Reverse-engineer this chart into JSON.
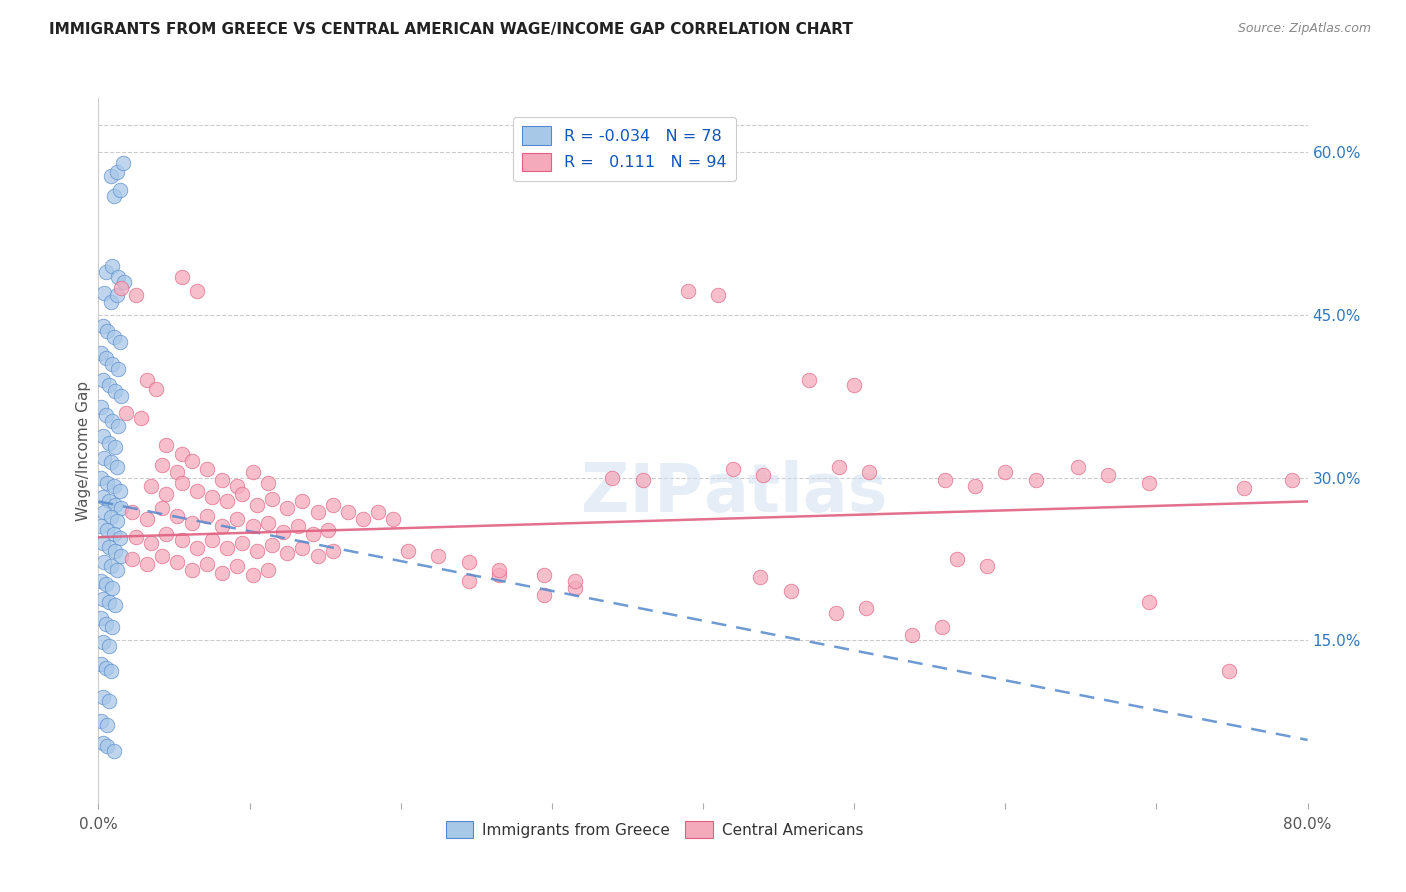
{
  "title": "IMMIGRANTS FROM GREECE VS CENTRAL AMERICAN WAGE/INCOME GAP CORRELATION CHART",
  "source": "Source: ZipAtlas.com",
  "ylabel": "Wage/Income Gap",
  "xlim": [
    0.0,
    0.8
  ],
  "ylim": [
    0.0,
    0.65
  ],
  "y_tick_labels_right": [
    "60.0%",
    "45.0%",
    "30.0%",
    "15.0%"
  ],
  "y_ticks_right": [
    0.6,
    0.45,
    0.3,
    0.15
  ],
  "color_greece": "#a8c8e8",
  "color_central": "#f5aabb",
  "trendline_greece_color": "#5588cc",
  "trendline_central_color": "#e06080",
  "watermark": "ZIPatlas",
  "greece_R": -0.034,
  "central_R": 0.111,
  "greece_trendline": [
    0.0,
    0.278,
    0.8,
    0.058
  ],
  "central_trendline": [
    0.0,
    0.245,
    0.8,
    0.278
  ],
  "greece_points": [
    [
      0.008,
      0.578
    ],
    [
      0.012,
      0.582
    ],
    [
      0.016,
      0.59
    ],
    [
      0.01,
      0.56
    ],
    [
      0.014,
      0.565
    ],
    [
      0.005,
      0.49
    ],
    [
      0.009,
      0.495
    ],
    [
      0.013,
      0.485
    ],
    [
      0.017,
      0.48
    ],
    [
      0.004,
      0.47
    ],
    [
      0.008,
      0.462
    ],
    [
      0.012,
      0.468
    ],
    [
      0.003,
      0.44
    ],
    [
      0.006,
      0.435
    ],
    [
      0.01,
      0.43
    ],
    [
      0.014,
      0.425
    ],
    [
      0.002,
      0.415
    ],
    [
      0.005,
      0.41
    ],
    [
      0.009,
      0.405
    ],
    [
      0.013,
      0.4
    ],
    [
      0.003,
      0.39
    ],
    [
      0.007,
      0.385
    ],
    [
      0.011,
      0.38
    ],
    [
      0.015,
      0.375
    ],
    [
      0.002,
      0.365
    ],
    [
      0.005,
      0.358
    ],
    [
      0.009,
      0.352
    ],
    [
      0.013,
      0.348
    ],
    [
      0.003,
      0.338
    ],
    [
      0.007,
      0.332
    ],
    [
      0.011,
      0.328
    ],
    [
      0.004,
      0.318
    ],
    [
      0.008,
      0.314
    ],
    [
      0.012,
      0.31
    ],
    [
      0.002,
      0.3
    ],
    [
      0.006,
      0.295
    ],
    [
      0.01,
      0.292
    ],
    [
      0.014,
      0.288
    ],
    [
      0.003,
      0.282
    ],
    [
      0.007,
      0.278
    ],
    [
      0.011,
      0.275
    ],
    [
      0.015,
      0.272
    ],
    [
      0.004,
      0.268
    ],
    [
      0.008,
      0.264
    ],
    [
      0.012,
      0.26
    ],
    [
      0.002,
      0.255
    ],
    [
      0.006,
      0.252
    ],
    [
      0.01,
      0.248
    ],
    [
      0.014,
      0.244
    ],
    [
      0.003,
      0.24
    ],
    [
      0.007,
      0.236
    ],
    [
      0.011,
      0.232
    ],
    [
      0.015,
      0.228
    ],
    [
      0.004,
      0.222
    ],
    [
      0.008,
      0.218
    ],
    [
      0.012,
      0.215
    ],
    [
      0.002,
      0.205
    ],
    [
      0.005,
      0.202
    ],
    [
      0.009,
      0.198
    ],
    [
      0.003,
      0.188
    ],
    [
      0.007,
      0.185
    ],
    [
      0.011,
      0.182
    ],
    [
      0.002,
      0.17
    ],
    [
      0.005,
      0.165
    ],
    [
      0.009,
      0.162
    ],
    [
      0.003,
      0.148
    ],
    [
      0.007,
      0.145
    ],
    [
      0.002,
      0.128
    ],
    [
      0.005,
      0.124
    ],
    [
      0.008,
      0.122
    ],
    [
      0.003,
      0.098
    ],
    [
      0.007,
      0.094
    ],
    [
      0.002,
      0.075
    ],
    [
      0.006,
      0.072
    ],
    [
      0.003,
      0.055
    ],
    [
      0.006,
      0.052
    ],
    [
      0.01,
      0.048
    ]
  ],
  "central_points": [
    [
      0.015,
      0.475
    ],
    [
      0.025,
      0.468
    ],
    [
      0.032,
      0.39
    ],
    [
      0.038,
      0.382
    ],
    [
      0.055,
      0.485
    ],
    [
      0.065,
      0.472
    ],
    [
      0.018,
      0.36
    ],
    [
      0.028,
      0.355
    ],
    [
      0.045,
      0.33
    ],
    [
      0.055,
      0.322
    ],
    [
      0.042,
      0.312
    ],
    [
      0.052,
      0.305
    ],
    [
      0.062,
      0.315
    ],
    [
      0.072,
      0.308
    ],
    [
      0.082,
      0.298
    ],
    [
      0.092,
      0.292
    ],
    [
      0.102,
      0.305
    ],
    [
      0.112,
      0.295
    ],
    [
      0.035,
      0.292
    ],
    [
      0.045,
      0.285
    ],
    [
      0.055,
      0.295
    ],
    [
      0.065,
      0.288
    ],
    [
      0.075,
      0.282
    ],
    [
      0.085,
      0.278
    ],
    [
      0.095,
      0.285
    ],
    [
      0.105,
      0.275
    ],
    [
      0.115,
      0.28
    ],
    [
      0.125,
      0.272
    ],
    [
      0.135,
      0.278
    ],
    [
      0.145,
      0.268
    ],
    [
      0.155,
      0.275
    ],
    [
      0.165,
      0.268
    ],
    [
      0.175,
      0.262
    ],
    [
      0.185,
      0.268
    ],
    [
      0.195,
      0.262
    ],
    [
      0.022,
      0.268
    ],
    [
      0.032,
      0.262
    ],
    [
      0.042,
      0.272
    ],
    [
      0.052,
      0.265
    ],
    [
      0.062,
      0.258
    ],
    [
      0.072,
      0.265
    ],
    [
      0.082,
      0.255
    ],
    [
      0.092,
      0.262
    ],
    [
      0.102,
      0.255
    ],
    [
      0.112,
      0.258
    ],
    [
      0.122,
      0.25
    ],
    [
      0.132,
      0.255
    ],
    [
      0.142,
      0.248
    ],
    [
      0.152,
      0.252
    ],
    [
      0.025,
      0.245
    ],
    [
      0.035,
      0.24
    ],
    [
      0.045,
      0.248
    ],
    [
      0.055,
      0.242
    ],
    [
      0.065,
      0.235
    ],
    [
      0.075,
      0.242
    ],
    [
      0.085,
      0.235
    ],
    [
      0.095,
      0.24
    ],
    [
      0.105,
      0.232
    ],
    [
      0.115,
      0.238
    ],
    [
      0.125,
      0.23
    ],
    [
      0.135,
      0.235
    ],
    [
      0.145,
      0.228
    ],
    [
      0.155,
      0.232
    ],
    [
      0.022,
      0.225
    ],
    [
      0.032,
      0.22
    ],
    [
      0.042,
      0.228
    ],
    [
      0.052,
      0.222
    ],
    [
      0.062,
      0.215
    ],
    [
      0.072,
      0.22
    ],
    [
      0.082,
      0.212
    ],
    [
      0.092,
      0.218
    ],
    [
      0.102,
      0.21
    ],
    [
      0.112,
      0.215
    ],
    [
      0.39,
      0.472
    ],
    [
      0.41,
      0.468
    ],
    [
      0.47,
      0.39
    ],
    [
      0.5,
      0.385
    ],
    [
      0.34,
      0.3
    ],
    [
      0.36,
      0.298
    ],
    [
      0.42,
      0.308
    ],
    [
      0.44,
      0.302
    ],
    [
      0.49,
      0.31
    ],
    [
      0.51,
      0.305
    ],
    [
      0.56,
      0.298
    ],
    [
      0.58,
      0.292
    ],
    [
      0.6,
      0.305
    ],
    [
      0.62,
      0.298
    ],
    [
      0.648,
      0.31
    ],
    [
      0.668,
      0.302
    ],
    [
      0.695,
      0.295
    ],
    [
      0.758,
      0.29
    ],
    [
      0.79,
      0.298
    ],
    [
      0.438,
      0.208
    ],
    [
      0.458,
      0.195
    ],
    [
      0.488,
      0.175
    ],
    [
      0.508,
      0.18
    ],
    [
      0.538,
      0.155
    ],
    [
      0.558,
      0.162
    ],
    [
      0.568,
      0.225
    ],
    [
      0.588,
      0.218
    ],
    [
      0.695,
      0.185
    ],
    [
      0.748,
      0.122
    ],
    [
      0.245,
      0.205
    ],
    [
      0.265,
      0.21
    ],
    [
      0.295,
      0.192
    ],
    [
      0.315,
      0.198
    ],
    [
      0.205,
      0.232
    ],
    [
      0.225,
      0.228
    ],
    [
      0.245,
      0.222
    ],
    [
      0.265,
      0.215
    ],
    [
      0.295,
      0.21
    ],
    [
      0.315,
      0.205
    ]
  ]
}
